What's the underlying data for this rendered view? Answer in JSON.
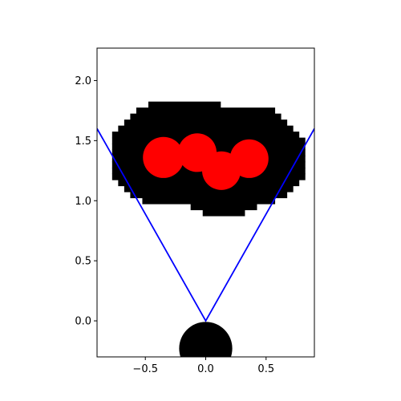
{
  "chart_data": {
    "type": "scatter",
    "title": "",
    "xlabel": "",
    "ylabel": "",
    "xlim": [
      -0.9,
      0.9
    ],
    "ylim": [
      -0.3,
      2.27
    ],
    "grid": false,
    "x_ticks": [
      -0.5,
      0.0,
      0.5
    ],
    "x_tick_labels": [
      "−0.5",
      "0.0",
      "0.5"
    ],
    "y_ticks": [
      0.0,
      0.5,
      1.0,
      1.5,
      2.0
    ],
    "y_tick_labels": [
      "0.0",
      "0.5",
      "1.0",
      "1.5",
      "2.0"
    ],
    "blob": {
      "color": "#000000",
      "cell": [
        0.05,
        0.05
      ],
      "rows": [
        {
          "y": 1.8,
          "x0": -0.45,
          "x1": 0.1
        },
        {
          "y": 1.75,
          "x0": -0.55,
          "x1": 0.55
        },
        {
          "y": 1.7,
          "x0": -0.6,
          "x1": 0.6
        },
        {
          "y": 1.65,
          "x0": -0.65,
          "x1": 0.65
        },
        {
          "y": 1.6,
          "x0": -0.7,
          "x1": 0.7
        },
        {
          "y": 1.55,
          "x0": -0.75,
          "x1": 0.75
        },
        {
          "y": 1.5,
          "x0": -0.75,
          "x1": 0.8
        },
        {
          "y": 1.45,
          "x0": -0.75,
          "x1": 0.8
        },
        {
          "y": 1.4,
          "x0": -0.75,
          "x1": 0.8
        },
        {
          "y": 1.35,
          "x0": -0.75,
          "x1": 0.8
        },
        {
          "y": 1.3,
          "x0": -0.75,
          "x1": 0.8
        },
        {
          "y": 1.25,
          "x0": -0.75,
          "x1": 0.8
        },
        {
          "y": 1.2,
          "x0": -0.75,
          "x1": 0.8
        },
        {
          "y": 1.15,
          "x0": -0.7,
          "x1": 0.75
        },
        {
          "y": 1.1,
          "x0": -0.65,
          "x1": 0.7
        },
        {
          "y": 1.05,
          "x0": -0.6,
          "x1": 0.65
        },
        {
          "y": 1.0,
          "x0": -0.5,
          "x1": 0.55
        },
        {
          "y": 0.95,
          "x0": -0.1,
          "x1": 0.4
        },
        {
          "y": 0.9,
          "x0": 0.0,
          "x1": 0.3
        }
      ]
    },
    "circles": [
      {
        "x": -0.35,
        "y": 1.36,
        "r": 0.17,
        "color": "#ff0000"
      },
      {
        "x": -0.07,
        "y": 1.4,
        "r": 0.16,
        "color": "#ff0000"
      },
      {
        "x": 0.13,
        "y": 1.25,
        "r": 0.16,
        "color": "#ff0000"
      },
      {
        "x": 0.36,
        "y": 1.35,
        "r": 0.16,
        "color": "#ff0000"
      },
      {
        "x": 0.0,
        "y": -0.23,
        "r": 0.22,
        "color": "#000000"
      }
    ],
    "lines": [
      {
        "x": [
          -0.9,
          0.0,
          0.9
        ],
        "y": [
          1.6,
          0.0,
          1.6
        ],
        "color": "#0000ff"
      }
    ]
  }
}
